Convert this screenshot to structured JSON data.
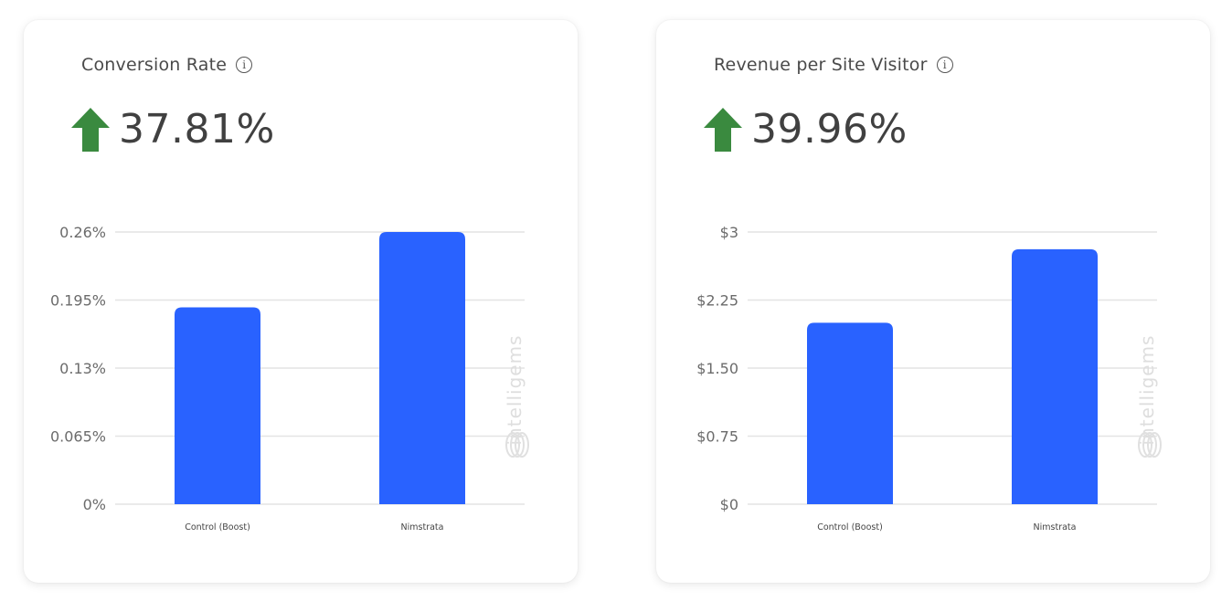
{
  "colors": {
    "bar": "#2962ff",
    "arrow": "#3a8a3f",
    "grid": "#e4e4e4"
  },
  "cards": [
    {
      "title": "Conversion Rate",
      "info_icon": "info-icon",
      "trend_icon": "arrow-up-icon",
      "metric": "37.81%",
      "watermark": "intelligems"
    },
    {
      "title": "Revenue per Site Visitor",
      "info_icon": "info-icon",
      "trend_icon": "arrow-up-icon",
      "metric": "39.96%",
      "watermark": "intelligems"
    }
  ],
  "chart_data": [
    {
      "type": "bar",
      "categories": [
        "Control (Boost)",
        "Nimstrata"
      ],
      "values": [
        0.188,
        0.26
      ],
      "ylim": [
        0,
        0.26
      ],
      "yticks": [
        0,
        0.065,
        0.13,
        0.195,
        0.26
      ],
      "ytick_labels": [
        "0%",
        "0.065%",
        "0.13%",
        "0.195%",
        "0.26%"
      ],
      "xlabel": "",
      "ylabel": "",
      "grid": true,
      "legend": "none"
    },
    {
      "type": "bar",
      "categories": [
        "Control (Boost)",
        "Nimstrata"
      ],
      "values": [
        2.0,
        2.81
      ],
      "ylim": [
        0,
        3
      ],
      "yticks": [
        0,
        0.75,
        1.5,
        2.25,
        3
      ],
      "ytick_labels": [
        "$0",
        "$0.75",
        "$1.50",
        "$2.25",
        "$3"
      ],
      "xlabel": "",
      "ylabel": "",
      "grid": true,
      "legend": "none"
    }
  ]
}
